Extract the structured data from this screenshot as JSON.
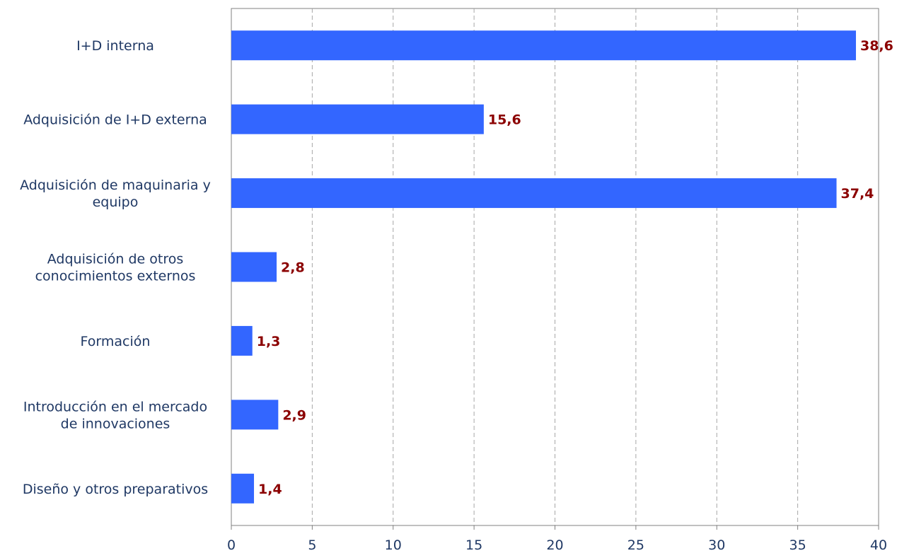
{
  "chart_data": {
    "type": "bar",
    "orientation": "horizontal",
    "categories": [
      [
        "I+D interna"
      ],
      [
        "Adquisición de I+D externa"
      ],
      [
        "Adquisición de maquinaria y",
        "equipo"
      ],
      [
        "Adquisición de otros",
        "conocimientos externos"
      ],
      [
        "Formación"
      ],
      [
        "Introducción en el mercado",
        "de innovaciones"
      ],
      [
        "Diseño y otros preparativos"
      ]
    ],
    "values": [
      38.6,
      15.6,
      37.4,
      2.8,
      1.3,
      2.9,
      1.4
    ],
    "value_labels": [
      "38,6",
      "15,6",
      "37,4",
      "2,8",
      "1,3",
      "2,9",
      "1,4"
    ],
    "xlim": [
      0,
      40
    ],
    "xticks": [
      0,
      5,
      10,
      15,
      20,
      25,
      30,
      35,
      40
    ],
    "grid": "vertical dashed",
    "title": "",
    "xlabel": "",
    "ylabel": "",
    "colors": {
      "bar": "#3366ff",
      "value_label": "#8b0000",
      "text": "#1f3864",
      "grid": "#a6a6a6",
      "axis": "#808080"
    }
  }
}
